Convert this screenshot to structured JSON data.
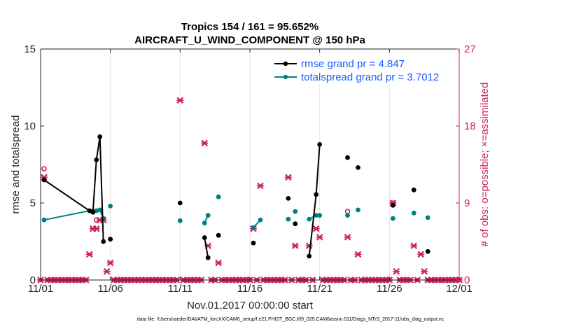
{
  "chart_data": {
    "type": "scatter",
    "title": "Tropics 154 / 161 = 95.652%",
    "subtitle": "AIRCRAFT_U_WIND_COMPONENT @ 150 hPa",
    "xlabel": "Nov.01,2017 00:00:00 start",
    "ylabel": "rmse and totalspread",
    "ylabel_right": "# of obs: o=possible; ×=assimilated",
    "footnote": "data file: /Users/raeder/DAI/ATM_forcXX/CAM6_setup/f.e21.FHIST_BGC.f09_025.CAM6assim.011/Diags_NTrS_2017-11/obs_diag_output.nc",
    "x_unit": "days since Nov.01,2017",
    "xlim": [
      0,
      30
    ],
    "ylim": [
      0,
      15
    ],
    "ylim_right": [
      0,
      27
    ],
    "xticks": [
      0,
      5,
      10,
      15,
      20,
      25,
      30
    ],
    "xtick_labels": [
      "11/01",
      "11/06",
      "11/11",
      "11/16",
      "11/21",
      "11/26",
      "12/01"
    ],
    "yticks": [
      0,
      5,
      10,
      15
    ],
    "yticks_right": [
      0,
      9,
      18,
      27
    ],
    "grid": "vertical",
    "legend_position": "top-right",
    "legend": [
      "rmse grand pr = 4.847",
      "totalspread grand pr = 3.7012"
    ],
    "colors": {
      "rmse": "#000000",
      "spread": "#008080",
      "obs": "#cc1f5d",
      "legend_text": "#1a5cff"
    },
    "rmse": [
      [
        0.25,
        6.5
      ],
      [
        3.5,
        4.5
      ],
      [
        3.75,
        4.4
      ],
      [
        4.0,
        7.8
      ],
      [
        4.25,
        9.3
      ],
      [
        4.5,
        2.5
      ],
      null,
      [
        5.0,
        2.65
      ],
      null,
      [
        10.0,
        5.0
      ],
      null,
      [
        11.75,
        2.75
      ],
      [
        12.0,
        1.45
      ],
      null,
      [
        12.75,
        2.9
      ],
      null,
      [
        15.25,
        2.4
      ],
      null,
      [
        17.75,
        5.3
      ],
      null,
      [
        18.25,
        3.65
      ],
      null,
      [
        19.25,
        1.55
      ],
      [
        19.75,
        5.55
      ],
      [
        20.0,
        8.8
      ],
      null,
      [
        22.0,
        7.95
      ],
      null,
      [
        22.75,
        7.3
      ],
      null,
      [
        25.25,
        4.85
      ],
      null,
      [
        26.75,
        5.85
      ],
      null,
      [
        27.75,
        1.85
      ]
    ],
    "totalspread": [
      [
        0.25,
        3.9
      ],
      [
        3.5,
        4.5
      ],
      [
        3.75,
        4.4
      ],
      [
        4.0,
        4.5
      ],
      [
        4.25,
        4.55
      ],
      [
        4.5,
        4.0
      ],
      null,
      [
        5.0,
        4.8
      ],
      null,
      [
        10.0,
        3.85
      ],
      null,
      [
        11.75,
        3.7
      ],
      [
        12.0,
        4.2
      ],
      null,
      [
        12.75,
        5.4
      ],
      null,
      [
        15.25,
        3.4
      ],
      [
        15.75,
        3.9
      ],
      null,
      [
        17.75,
        3.95
      ],
      null,
      [
        18.25,
        4.45
      ],
      null,
      [
        19.25,
        3.95
      ],
      [
        19.75,
        4.2
      ],
      [
        20.0,
        4.2
      ],
      null,
      [
        22.0,
        4.2
      ],
      null,
      [
        22.75,
        4.55
      ],
      null,
      [
        25.25,
        4.0
      ],
      null,
      [
        26.75,
        4.35
      ],
      null,
      [
        27.75,
        4.05
      ]
    ],
    "obs_assimilated": [
      [
        0.25,
        12
      ],
      [
        3.5,
        3
      ],
      [
        3.75,
        6
      ],
      [
        4.0,
        6
      ],
      [
        4.25,
        7
      ],
      [
        4.5,
        7
      ],
      [
        4.75,
        1
      ],
      [
        5.0,
        2
      ],
      [
        10.0,
        21
      ],
      [
        11.75,
        16
      ],
      [
        12.0,
        4
      ],
      [
        12.75,
        2
      ],
      [
        15.25,
        6
      ],
      [
        15.75,
        11
      ],
      [
        17.75,
        12
      ],
      [
        18.25,
        4
      ],
      [
        19.25,
        4
      ],
      [
        19.75,
        6
      ],
      [
        20.0,
        5
      ],
      [
        22.0,
        5
      ],
      [
        22.75,
        3
      ],
      [
        25.25,
        9
      ],
      [
        25.5,
        1
      ],
      [
        26.75,
        4
      ],
      [
        27.25,
        3
      ],
      [
        27.5,
        1
      ]
    ],
    "obs_possible": [
      [
        0.25,
        13
      ],
      [
        3.75,
        8
      ],
      [
        4.0,
        7
      ],
      [
        22.0,
        8
      ],
      [
        25.25,
        9
      ]
    ]
  }
}
